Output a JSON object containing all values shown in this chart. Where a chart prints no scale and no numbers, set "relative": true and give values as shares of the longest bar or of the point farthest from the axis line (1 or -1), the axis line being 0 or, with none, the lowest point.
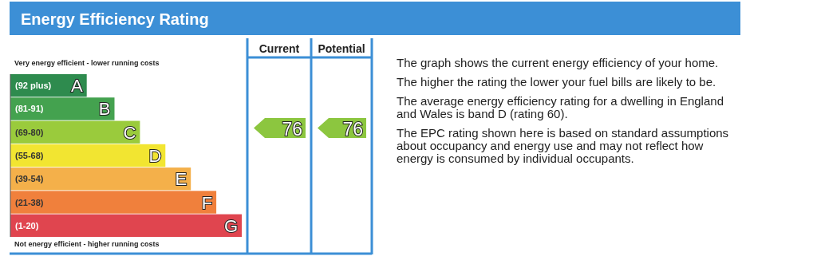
{
  "chart_data": [
    {
      "type": "bar",
      "title": "Energy Efficiency Rating",
      "orientation": "horizontal",
      "relative": true,
      "categories": [
        "(92 plus)",
        "(81-91)",
        "(69-80)",
        "(55-68)",
        "(39-54)",
        "(21-38)",
        "(1-20)"
      ],
      "values": [
        0.33,
        0.45,
        0.56,
        0.67,
        0.78,
        0.89,
        1
      ],
      "colors": [
        "#2e8b4e",
        "#44a24f",
        "#9acb3c",
        "#f2e531",
        "#f4b04a",
        "#f0803c",
        "#e0454f"
      ],
      "annotations": [
        "Very energy efficient - lower running costs",
        "Not energy efficient - higher running costs",
        {
          "text": "A",
          "x": 0.33,
          "y": "(92 plus)"
        },
        {
          "text": "B",
          "x": 0.45,
          "y": "(81-91)"
        },
        {
          "text": "C",
          "x": 0.56,
          "y": "(69-80)"
        },
        {
          "text": "D",
          "x": 0.67,
          "y": "(55-68)"
        },
        {
          "text": "E",
          "x": 0.78,
          "y": "(39-54)"
        },
        {
          "text": "F",
          "x": 0.89,
          "y": "(21-38)"
        },
        {
          "text": "G",
          "x": 1,
          "y": "(1-20)"
        }
      ]
    },
    {
      "type": "other",
      "categories": [
        "Current",
        "Potential"
      ],
      "values": [
        76,
        76
      ],
      "data_labels": true,
      "colors": [
        "#8cc63f",
        "#8cc63f"
      ]
    },
    {
      "type": "other",
      "annotations": [
        "The graph shows the current energy efficiency of your home.",
        "The higher the rating the lower your fuel bills are likely to be.",
        "The average energy efficiency rating for a dwelling in England and Wales is band D (rating 60).",
        "The EPC rating shown here is based on standard assumptions about occupancy and energy use and may not reflect how energy is consumed by individual occupants."
      ]
    }
  ]
}
